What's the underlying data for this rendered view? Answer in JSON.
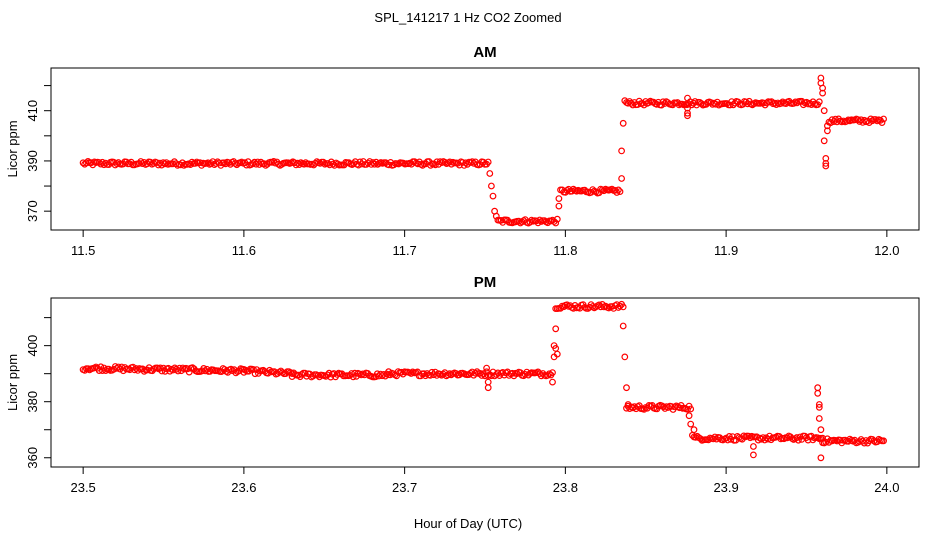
{
  "figure": {
    "title": "SPL_141217  1 Hz CO2 Zoomed",
    "xlabel": "Hour of Day (UTC)"
  },
  "colors": {
    "points": "#ff0000",
    "axes": "#000000"
  },
  "chart_data": [
    {
      "type": "scatter",
      "title": "AM",
      "ylabel": "Licor ppm",
      "xlim": [
        11.48,
        12.02
      ],
      "ylim": [
        362.5,
        427
      ],
      "xticks": [
        "11.5",
        "11.6",
        "11.7",
        "11.8",
        "11.9",
        "12.0"
      ],
      "xtick_values": [
        11.5,
        11.6,
        11.7,
        11.8,
        11.9,
        12.0
      ],
      "yticks": [
        "370",
        "390",
        "410"
      ],
      "ytick_values": [
        370,
        390,
        410
      ],
      "segments": [
        {
          "x": [
            11.5,
            11.752
          ],
          "y": [
            389,
            389
          ]
        },
        {
          "x": [
            11.758,
            11.795
          ],
          "y": [
            366,
            366
          ]
        },
        {
          "x": [
            11.797,
            11.834
          ],
          "y": [
            378,
            378
          ]
        },
        {
          "x": [
            11.838,
            11.958
          ],
          "y": [
            413,
            413
          ]
        },
        {
          "x": [
            11.964,
            11.998
          ],
          "y": [
            406,
            406
          ]
        }
      ],
      "points": [
        [
          11.753,
          385
        ],
        [
          11.754,
          380
        ],
        [
          11.755,
          376
        ],
        [
          11.756,
          370
        ],
        [
          11.757,
          368
        ],
        [
          11.796,
          372
        ],
        [
          11.796,
          375
        ],
        [
          11.835,
          383
        ],
        [
          11.835,
          394
        ],
        [
          11.836,
          405
        ],
        [
          11.837,
          414
        ],
        [
          11.876,
          415
        ],
        [
          11.876,
          409
        ],
        [
          11.876,
          408
        ],
        [
          11.876,
          411
        ],
        [
          11.959,
          423
        ],
        [
          11.959,
          421
        ],
        [
          11.96,
          419
        ],
        [
          11.96,
          417
        ],
        [
          11.961,
          410
        ],
        [
          11.961,
          398
        ],
        [
          11.962,
          391
        ],
        [
          11.962,
          389
        ],
        [
          11.962,
          388
        ],
        [
          11.963,
          402
        ],
        [
          11.963,
          404
        ]
      ]
    },
    {
      "type": "scatter",
      "title": "PM",
      "ylabel": "Licor ppm",
      "xlim": [
        23.48,
        24.02
      ],
      "ylim": [
        356.7,
        417
      ],
      "xticks": [
        "23.5",
        "23.6",
        "23.7",
        "23.8",
        "23.9",
        "24.0"
      ],
      "xtick_values": [
        23.5,
        23.6,
        23.7,
        23.8,
        23.9,
        24.0
      ],
      "yticks": [
        "360",
        "380",
        "400"
      ],
      "ytick_values": [
        360,
        380,
        400
      ],
      "segments": [
        {
          "x": [
            23.5,
            23.6
          ],
          "y": [
            392,
            391
          ]
        },
        {
          "x": [
            23.6,
            23.63
          ],
          "y": [
            391,
            390
          ]
        },
        {
          "x": [
            23.63,
            23.69
          ],
          "y": [
            389.5,
            389.5
          ]
        },
        {
          "x": [
            23.69,
            23.792
          ],
          "y": [
            390,
            390
          ]
        },
        {
          "x": [
            23.794,
            23.836
          ],
          "y": [
            414,
            414
          ]
        },
        {
          "x": [
            23.838,
            23.878
          ],
          "y": [
            378,
            378
          ]
        },
        {
          "x": [
            23.88,
            23.96
          ],
          "y": [
            367,
            367
          ]
        },
        {
          "x": [
            23.96,
            23.998
          ],
          "y": [
            366,
            366
          ]
        }
      ],
      "points": [
        [
          23.752,
          385
        ],
        [
          23.752,
          387
        ],
        [
          23.751,
          392
        ],
        [
          23.792,
          387
        ],
        [
          23.793,
          396
        ],
        [
          23.793,
          400
        ],
        [
          23.794,
          406
        ],
        [
          23.794,
          399
        ],
        [
          23.795,
          397
        ],
        [
          23.836,
          407
        ],
        [
          23.837,
          396
        ],
        [
          23.838,
          385
        ],
        [
          23.839,
          379
        ],
        [
          23.877,
          375
        ],
        [
          23.878,
          372
        ],
        [
          23.879,
          368
        ],
        [
          23.88,
          370
        ],
        [
          23.917,
          364
        ],
        [
          23.917,
          361
        ],
        [
          23.957,
          385
        ],
        [
          23.957,
          383
        ],
        [
          23.958,
          379
        ],
        [
          23.958,
          378
        ],
        [
          23.958,
          374
        ],
        [
          23.959,
          370
        ],
        [
          23.959,
          360
        ]
      ]
    }
  ]
}
